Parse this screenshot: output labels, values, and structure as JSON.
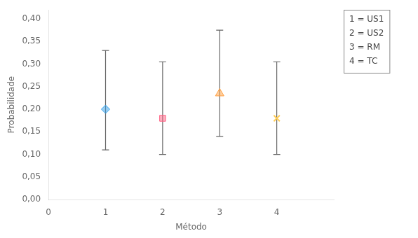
{
  "chart_data": {
    "type": "scatter",
    "xlabel": "Método",
    "ylabel": "Probabilidade",
    "series": [
      {
        "marker": "diamond",
        "x": [
          1
        ],
        "values": [
          0.2
        ],
        "ci_lower": [
          0.11
        ],
        "ci_upper": [
          0.33
        ]
      },
      {
        "marker": "square",
        "x": [
          2
        ],
        "values": [
          0.18
        ],
        "ci_lower": [
          0.1
        ],
        "ci_upper": [
          0.305
        ]
      },
      {
        "marker": "triangle",
        "x": [
          3
        ],
        "values": [
          0.235
        ],
        "ci_lower": [
          0.14
        ],
        "ci_upper": [
          0.375
        ]
      },
      {
        "marker": "x",
        "x": [
          4
        ],
        "values": [
          0.18
        ],
        "ci_lower": [
          0.1
        ],
        "ci_upper": [
          0.305
        ]
      }
    ],
    "xlim": [
      0,
      5
    ],
    "xticks": [
      0,
      1,
      2,
      3,
      4
    ],
    "ylim": [
      0.0,
      0.42
    ],
    "yticks": [
      {
        "value": 0.0,
        "label": "0,00"
      },
      {
        "value": 0.05,
        "label": "0,05"
      },
      {
        "value": 0.1,
        "label": "0,10"
      },
      {
        "value": 0.15,
        "label": "0,15"
      },
      {
        "value": 0.2,
        "label": "0,20"
      },
      {
        "value": 0.25,
        "label": "0,25"
      },
      {
        "value": 0.3,
        "label": "0,30"
      },
      {
        "value": 0.35,
        "label": "0,35"
      },
      {
        "value": 0.4,
        "label": "0,40"
      }
    ],
    "annotations": [
      "1 = US1",
      "2 = US2",
      "3 = RM",
      "4 = TC"
    ],
    "grid": false
  }
}
